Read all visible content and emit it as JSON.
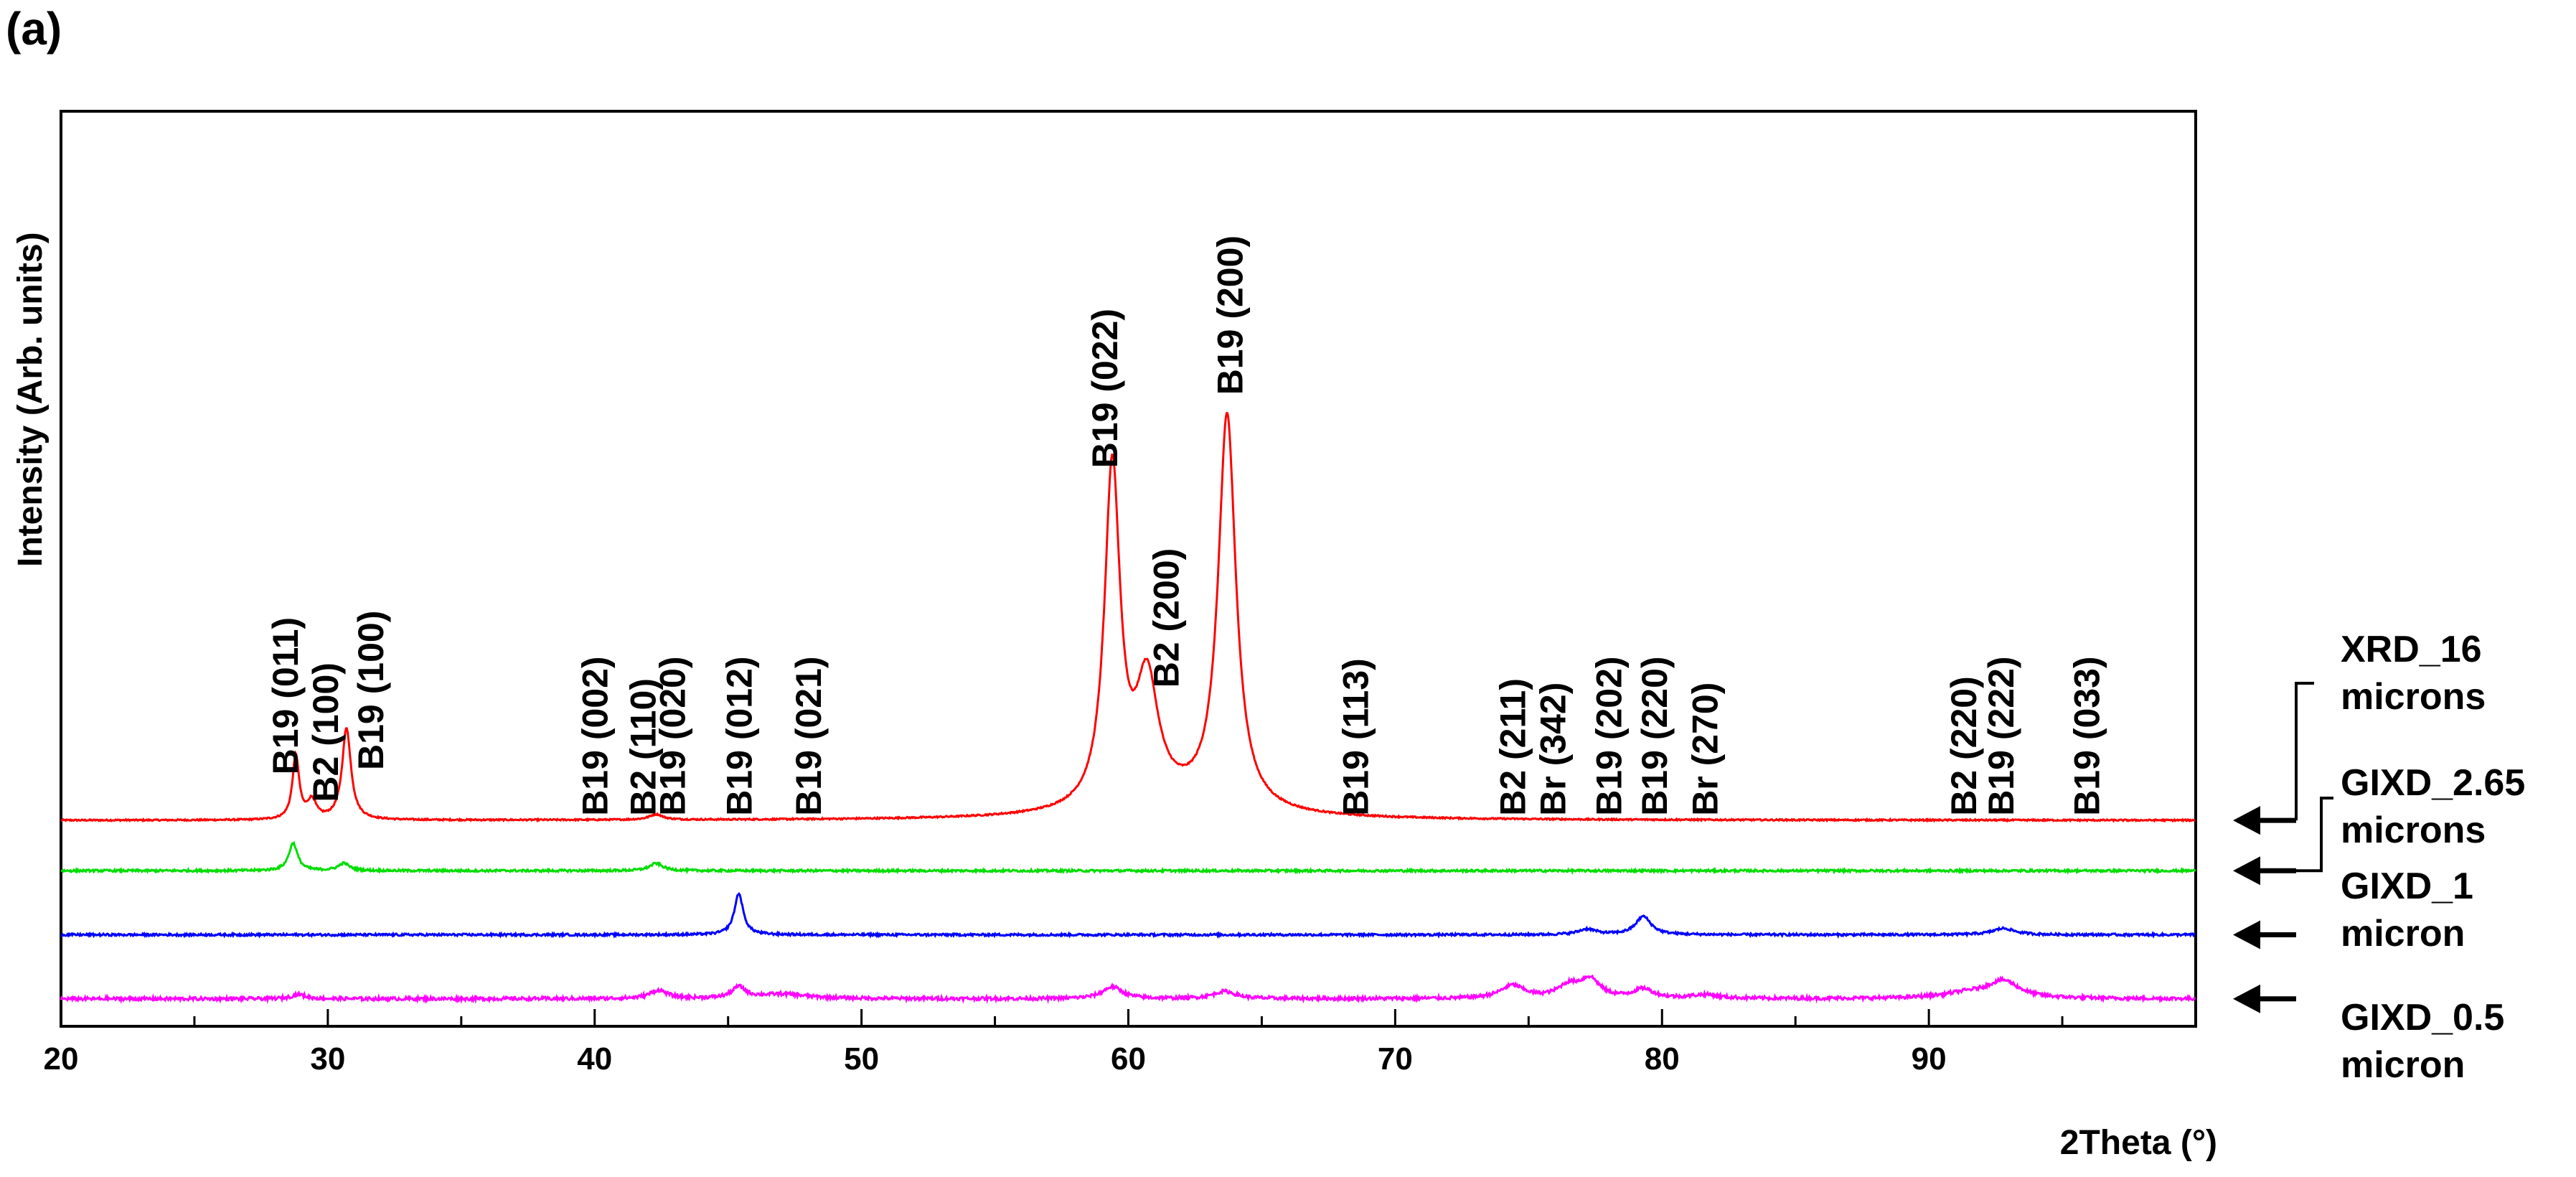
{
  "chart_data": {
    "type": "line",
    "panel_label": "(a)",
    "title": "",
    "xlabel": "2Theta (°)",
    "ylabel": "Intensity (Arb. units)",
    "xlim": [
      20,
      100
    ],
    "x_ticks": [
      20,
      30,
      40,
      50,
      60,
      70,
      80,
      90
    ],
    "x_tick_labels": [
      "20",
      "30",
      "40",
      "50",
      "60",
      "70",
      "80",
      "90"
    ],
    "ylim": [
      0,
      100
    ],
    "grid": false,
    "legend": [
      {
        "lines": [
          "XRD_16",
          "microns"
        ],
        "series": "XRD_16 microns"
      },
      {
        "lines": [
          "GIXD_2.65",
          "microns"
        ],
        "series": "GIXD_2.65 microns"
      },
      {
        "lines": [
          "GIXD_1",
          "micron"
        ],
        "series": "GIXD_1 micron"
      },
      {
        "lines": [
          "GIXD_0.5",
          "micron"
        ],
        "series": "GIXD_0.5 micron"
      }
    ],
    "series": [
      {
        "name": "XRD_16 microns",
        "color": "#ff0000",
        "baseline": 22.5,
        "noise": 0.08,
        "peaks": [
          {
            "x": 28.8,
            "h": 7,
            "w": 0.15
          },
          {
            "x": 29.4,
            "h": 2,
            "w": 0.2
          },
          {
            "x": 30.7,
            "h": 10,
            "w": 0.2
          },
          {
            "x": 42.3,
            "h": 0.6,
            "w": 0.3
          },
          {
            "x": 59.4,
            "h": 37,
            "w": 0.35
          },
          {
            "x": 60.7,
            "h": 13,
            "w": 0.5
          },
          {
            "x": 63.7,
            "h": 43,
            "w": 0.4
          },
          {
            "x": 61.5,
            "h": 1.5,
            "w": 3.0
          }
        ]
      },
      {
        "name": "GIXD_2.65 microns",
        "color": "#00dd00",
        "baseline": 17.0,
        "noise": 0.12,
        "peaks": [
          {
            "x": 28.7,
            "h": 3,
            "w": 0.2
          },
          {
            "x": 30.6,
            "h": 0.8,
            "w": 0.25
          },
          {
            "x": 42.3,
            "h": 0.8,
            "w": 0.3
          }
        ]
      },
      {
        "name": "GIXD_1 micron",
        "color": "#0000ff",
        "baseline": 10.0,
        "noise": 0.12,
        "peaks": [
          {
            "x": 45.4,
            "h": 4.5,
            "w": 0.2
          },
          {
            "x": 77.2,
            "h": 0.6,
            "w": 0.4
          },
          {
            "x": 79.3,
            "h": 2.0,
            "w": 0.35
          },
          {
            "x": 92.8,
            "h": 0.7,
            "w": 0.5
          }
        ]
      },
      {
        "name": "GIXD_0.5 micron",
        "color": "#ff00ff",
        "baseline": 3.0,
        "noise": 0.18,
        "peaks": [
          {
            "x": 28.9,
            "h": 0.5,
            "w": 0.3
          },
          {
            "x": 42.4,
            "h": 0.9,
            "w": 0.4
          },
          {
            "x": 45.4,
            "h": 1.2,
            "w": 0.3
          },
          {
            "x": 47.0,
            "h": 0.5,
            "w": 1.2
          },
          {
            "x": 59.4,
            "h": 1.3,
            "w": 0.45
          },
          {
            "x": 63.6,
            "h": 0.8,
            "w": 0.5
          },
          {
            "x": 74.4,
            "h": 1.4,
            "w": 0.55
          },
          {
            "x": 76.5,
            "h": 1.3,
            "w": 0.5
          },
          {
            "x": 77.3,
            "h": 2.0,
            "w": 0.45
          },
          {
            "x": 79.3,
            "h": 1.0,
            "w": 0.45
          },
          {
            "x": 81.6,
            "h": 0.4,
            "w": 0.6
          },
          {
            "x": 92.8,
            "h": 1.8,
            "w": 0.7
          },
          {
            "x": 91.5,
            "h": 0.6,
            "w": 1.2
          }
        ]
      }
    ],
    "annotations": [
      {
        "text": "B19 (011)",
        "x": 28.5,
        "y": 27.5
      },
      {
        "text": "B2 (100)",
        "x": 30.0,
        "y": 24.5
      },
      {
        "text": "B19 (100)",
        "x": 31.7,
        "y": 28.0
      },
      {
        "text": "B19 (002)",
        "x": 40.1,
        "y": 23.0
      },
      {
        "text": "B2 (110)",
        "x": 41.9,
        "y": 23.0
      },
      {
        "text": "B19 (020)",
        "x": 43.0,
        "y": 23.0
      },
      {
        "text": "B19 (012)",
        "x": 45.5,
        "y": 23.0
      },
      {
        "text": "B19 (021)",
        "x": 48.1,
        "y": 23.0
      },
      {
        "text": "B19 (022)",
        "x": 59.2,
        "y": 61.0
      },
      {
        "text": "B2 (200)",
        "x": 61.5,
        "y": 37.0
      },
      {
        "text": "B19 (200)",
        "x": 63.9,
        "y": 69.0
      },
      {
        "text": "B19 (113)",
        "x": 68.6,
        "y": 23.0
      },
      {
        "text": "B2 (211)",
        "x": 74.5,
        "y": 23.0
      },
      {
        "text": "Br (342)",
        "x": 76.0,
        "y": 23.0
      },
      {
        "text": "B19 (202)",
        "x": 78.1,
        "y": 23.0
      },
      {
        "text": "B19 (220)",
        "x": 79.8,
        "y": 23.0
      },
      {
        "text": "Br (270)",
        "x": 81.7,
        "y": 23.0
      },
      {
        "text": "B2 (220)",
        "x": 91.4,
        "y": 23.0
      },
      {
        "text": "B19 (222)",
        "x": 92.8,
        "y": 23.0
      },
      {
        "text": "B19 (033)",
        "x": 96.0,
        "y": 23.0
      }
    ]
  }
}
